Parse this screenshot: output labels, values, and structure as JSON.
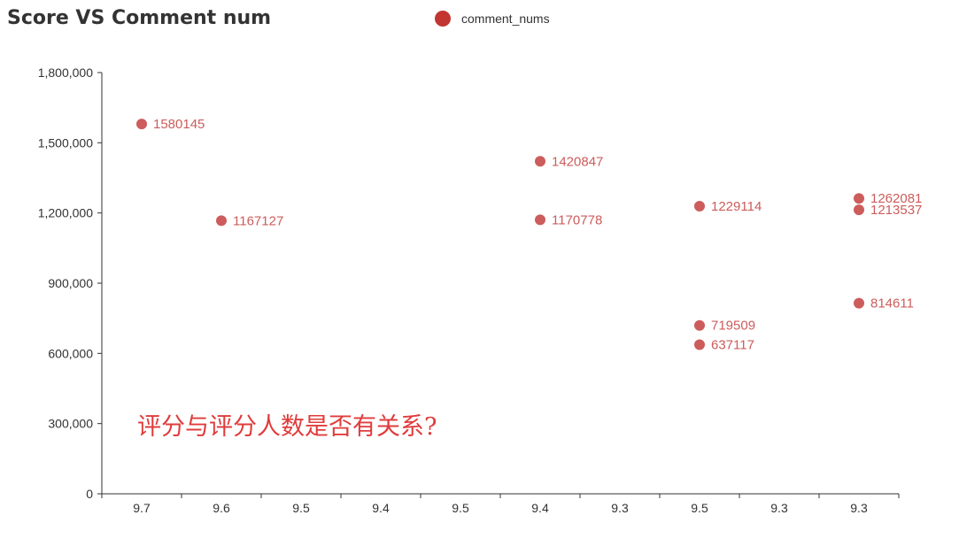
{
  "chart_data": {
    "type": "scatter",
    "title": "Score VS Comment num",
    "legend_position": "top-center",
    "categories": [
      "9.7",
      "9.6",
      "9.5",
      "9.4",
      "9.5",
      "9.4",
      "9.3",
      "9.5",
      "9.3",
      "9.3"
    ],
    "series": [
      {
        "name": "comment_nums",
        "points": [
          {
            "category_index": 0,
            "value": 1580145
          },
          {
            "category_index": 1,
            "value": 1167127
          },
          {
            "category_index": 5,
            "value": 1420847
          },
          {
            "category_index": 5,
            "value": 1170778
          },
          {
            "category_index": 7,
            "value": 1229114
          },
          {
            "category_index": 7,
            "value": 719509
          },
          {
            "category_index": 7,
            "value": 637117
          },
          {
            "category_index": 9,
            "value": 1262081
          },
          {
            "category_index": 9,
            "value": 1213537
          },
          {
            "category_index": 9,
            "value": 814611
          }
        ]
      }
    ],
    "ylim": [
      0,
      1800000
    ],
    "y_ticks": [
      "0",
      "300,000",
      "600,000",
      "900,000",
      "1,200,000",
      "1,500,000",
      "1,800,000"
    ],
    "grid": false,
    "annotation": "评分与评分人数是否有关系?"
  },
  "colors": {
    "legend_marker": "#c23531",
    "point": "#cd5c5c",
    "label": "#cd5c5c",
    "annotation": "#e03c3c",
    "axis": "#333333"
  }
}
